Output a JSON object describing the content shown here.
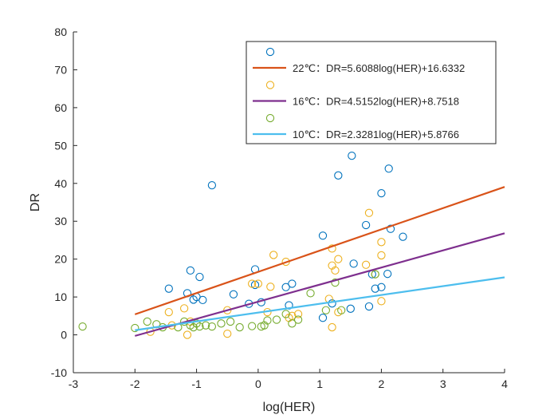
{
  "chart_data": {
    "type": "scatter",
    "title": "",
    "xlabel": "log(HER)",
    "ylabel": "DR",
    "xlim": [
      -3,
      4
    ],
    "ylim": [
      -10,
      80
    ],
    "xticks": [
      -3,
      -2,
      -1,
      0,
      1,
      2,
      3,
      4
    ],
    "yticks": [
      -10,
      0,
      10,
      20,
      30,
      40,
      50,
      60,
      70,
      80
    ],
    "grid": false,
    "legend_position": "top-right",
    "series": [
      {
        "color": "#0072BD",
        "marker": "circle",
        "points": [
          [
            -0.75,
            39.5
          ],
          [
            -1.45,
            12.2
          ],
          [
            -1.15,
            11.0
          ],
          [
            -1.1,
            17.0
          ],
          [
            -1.05,
            9.3
          ],
          [
            -1.0,
            10.0
          ],
          [
            -0.95,
            15.3
          ],
          [
            -0.9,
            9.2
          ],
          [
            -0.4,
            10.7
          ],
          [
            -0.15,
            8.2
          ],
          [
            -0.05,
            17.3
          ],
          [
            -0.05,
            13.2
          ],
          [
            0.05,
            8.6
          ],
          [
            0.45,
            12.6
          ],
          [
            0.5,
            7.8
          ],
          [
            0.55,
            13.5
          ],
          [
            1.05,
            26.2
          ],
          [
            1.05,
            4.5
          ],
          [
            1.2,
            8.3
          ],
          [
            1.3,
            42.1
          ],
          [
            1.5,
            6.9
          ],
          [
            1.52,
            47.3
          ],
          [
            1.55,
            18.8
          ],
          [
            1.75,
            29.0
          ],
          [
            1.8,
            7.5
          ],
          [
            1.85,
            16.0
          ],
          [
            1.9,
            12.2
          ],
          [
            2.0,
            37.4
          ],
          [
            2.0,
            12.6
          ],
          [
            2.1,
            16.1
          ],
          [
            2.12,
            43.9
          ],
          [
            2.15,
            28.0
          ],
          [
            2.35,
            25.9
          ],
          [
            0.22,
            74.8
          ]
        ]
      },
      {
        "color": "#EDB120",
        "marker": "circle",
        "points": [
          [
            -1.75,
            0.8
          ],
          [
            -1.45,
            6.0
          ],
          [
            -1.4,
            2.5
          ],
          [
            -1.2,
            7.0
          ],
          [
            -1.1,
            3.5
          ],
          [
            -0.5,
            0.3
          ],
          [
            -0.5,
            6.5
          ],
          [
            -0.1,
            13.5
          ],
          [
            0.0,
            13.5
          ],
          [
            0.15,
            6.0
          ],
          [
            0.2,
            12.7
          ],
          [
            0.25,
            21.1
          ],
          [
            0.45,
            19.3
          ],
          [
            0.5,
            4.5
          ],
          [
            0.55,
            5.0
          ],
          [
            0.65,
            5.5
          ],
          [
            1.15,
            9.5
          ],
          [
            1.2,
            22.8
          ],
          [
            1.2,
            18.3
          ],
          [
            1.25,
            17.0
          ],
          [
            1.3,
            20.0
          ],
          [
            1.3,
            6.0
          ],
          [
            1.75,
            18.5
          ],
          [
            1.8,
            32.2
          ],
          [
            1.9,
            16.0
          ],
          [
            2.0,
            24.5
          ],
          [
            2.0,
            21.0
          ],
          [
            2.0,
            8.9
          ],
          [
            1.2,
            2.0
          ],
          [
            -1.15,
            0.0
          ],
          [
            0.22,
            66.0
          ]
        ]
      },
      {
        "color": "#77AC30",
        "marker": "circle",
        "points": [
          [
            -2.85,
            2.2
          ],
          [
            -2.0,
            1.8
          ],
          [
            -1.8,
            3.5
          ],
          [
            -1.65,
            2.8
          ],
          [
            -1.55,
            2.0
          ],
          [
            -1.3,
            2.0
          ],
          [
            -1.2,
            3.5
          ],
          [
            -1.1,
            2.5
          ],
          [
            -1.05,
            2.0
          ],
          [
            -1.0,
            3.0
          ],
          [
            -0.95,
            2.2
          ],
          [
            -0.85,
            2.5
          ],
          [
            -0.75,
            2.2
          ],
          [
            -0.6,
            3.0
          ],
          [
            -0.45,
            3.5
          ],
          [
            -0.3,
            2.0
          ],
          [
            -0.1,
            2.3
          ],
          [
            0.05,
            2.2
          ],
          [
            0.1,
            2.5
          ],
          [
            0.15,
            3.8
          ],
          [
            0.3,
            4.0
          ],
          [
            0.45,
            5.5
          ],
          [
            0.55,
            3.0
          ],
          [
            0.65,
            4.0
          ],
          [
            0.85,
            11.0
          ],
          [
            1.1,
            6.5
          ],
          [
            1.25,
            13.8
          ],
          [
            1.35,
            6.5
          ],
          [
            1.9,
            16.0
          ],
          [
            0.22,
            57.3
          ]
        ]
      }
    ],
    "fit_lines": [
      {
        "label": "22℃：DR=5.6088log(HER)+16.6332",
        "color": "#D95319",
        "slope": 5.6088,
        "intercept": 16.6332,
        "x_range": [
          -2,
          4
        ]
      },
      {
        "label": "16℃：DR=4.5152log(HER)+8.7518",
        "color": "#7E2F8E",
        "slope": 4.5152,
        "intercept": 8.7518,
        "x_range": [
          -2,
          4
        ]
      },
      {
        "label": "10℃：DR=2.3281log(HER)+5.8766",
        "color": "#4DBEEE",
        "slope": 2.3281,
        "intercept": 5.8766,
        "x_range": [
          -2,
          4
        ]
      }
    ]
  }
}
